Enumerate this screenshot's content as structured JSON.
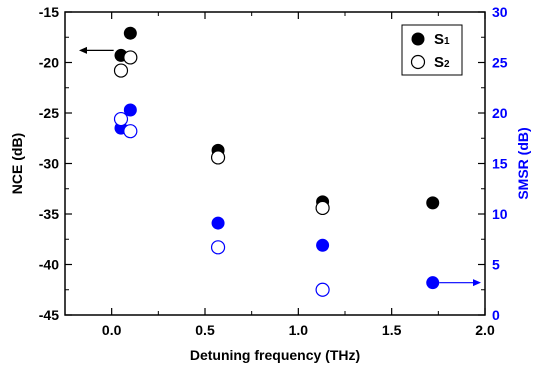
{
  "chart_data": {
    "type": "scatter",
    "xlabel": "Detuning frequency (THz)",
    "ylabel_left": "NCE (dB)",
    "ylabel_right": "SMSR (dB)",
    "xlim": [
      -0.25,
      2.0
    ],
    "ylim_left": [
      -45,
      -15
    ],
    "ylim_right": [
      0,
      30
    ],
    "x_ticks": [
      0.0,
      0.5,
      1.0,
      1.5,
      2.0
    ],
    "x_tick_labels": [
      "0.0",
      "0.5",
      "1.0",
      "1.5",
      "2.0"
    ],
    "y_left_ticks": [
      -15,
      -20,
      -25,
      -30,
      -35,
      -40,
      -45
    ],
    "y_left_tick_labels": [
      "-15",
      "-20",
      "-25",
      "-30",
      "-35",
      "-40",
      "-45"
    ],
    "y_right_ticks": [
      30,
      25,
      20,
      15,
      10,
      5,
      0
    ],
    "y_right_tick_labels": [
      "30",
      "25",
      "20",
      "15",
      "10",
      "5",
      "0"
    ],
    "grid": false,
    "legend_position": "top-right",
    "legend": [
      {
        "main": "S",
        "sub": "1"
      },
      {
        "main": "S",
        "sub": "2"
      }
    ],
    "series": [
      {
        "name": "S1",
        "axis": "left",
        "color": "#000000",
        "marker": "filled-circle",
        "points": [
          [
            0.05,
            -19.3
          ],
          [
            0.1,
            -17.1
          ],
          [
            0.57,
            -28.7
          ],
          [
            1.13,
            -33.8
          ],
          [
            1.72,
            -33.9
          ]
        ]
      },
      {
        "name": "S2",
        "axis": "left",
        "color": "#000000",
        "marker": "open-circle",
        "points": [
          [
            0.05,
            -20.8
          ],
          [
            0.1,
            -19.5
          ],
          [
            0.57,
            -29.4
          ],
          [
            1.13,
            -34.4
          ]
        ]
      },
      {
        "name": "S1",
        "axis": "right",
        "color": "#0000ff",
        "marker": "filled-circle",
        "points": [
          [
            0.05,
            18.5
          ],
          [
            0.1,
            20.3
          ],
          [
            0.57,
            9.1
          ],
          [
            1.13,
            6.9
          ],
          [
            1.72,
            3.2
          ]
        ]
      },
      {
        "name": "S2",
        "axis": "right",
        "color": "#0000ff",
        "marker": "open-circle",
        "points": [
          [
            0.05,
            19.4
          ],
          [
            0.1,
            18.2
          ],
          [
            0.57,
            6.7
          ],
          [
            1.13,
            2.5
          ]
        ]
      }
    ],
    "arrows": [
      {
        "axis": "left",
        "direction": "left",
        "color": "#000000"
      },
      {
        "axis": "right",
        "direction": "right",
        "color": "#0000ff"
      }
    ],
    "colors": {
      "left_axis": "#000000",
      "right_axis": "#0000ff"
    }
  }
}
